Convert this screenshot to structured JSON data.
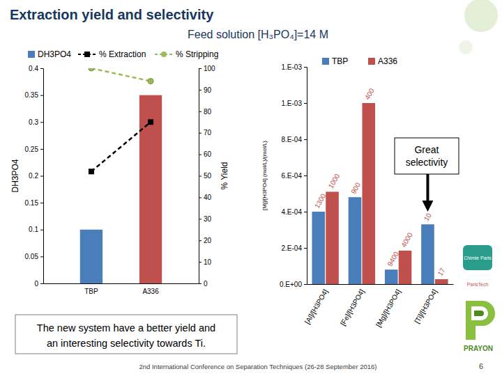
{
  "slide": {
    "title": "Extraction yield and selectivity",
    "subtitle": "Feed solution [H₃PO₄]=14 M",
    "caption": [
      "The new system have a better yield and",
      "an interesting selectivity towards Ti."
    ],
    "footer": "2nd International Conference on Separation Techniques (26-28 September 2016)",
    "page": "6",
    "logos": [
      "Chimie Paris",
      "ParisTech",
      "PRAYON"
    ]
  },
  "chart_data": [
    {
      "type": "bar",
      "categories": [
        "TBP",
        "A336"
      ],
      "y_label": "DH3PO4",
      "y2_label": "% Yield",
      "ylim": [
        0,
        0.4
      ],
      "yticks": [
        0,
        0.05,
        0.1,
        0.15,
        0.2,
        0.25,
        0.3,
        0.35,
        0.4
      ],
      "y2lim": [
        0,
        100
      ],
      "y2ticks": [
        0,
        10,
        20,
        30,
        40,
        50,
        60,
        70,
        80,
        90,
        100
      ],
      "legend": "top",
      "series": [
        {
          "name": "DH3PO4",
          "type": "bar",
          "colors": [
            "#4a7ebb",
            "#c0504d"
          ],
          "values": [
            0.1,
            0.35
          ]
        },
        {
          "name": "% Extraction",
          "type": "line",
          "axis": "y2",
          "color": "#000000",
          "marker": "square",
          "line_style": "dashed",
          "values": [
            52,
            75
          ]
        },
        {
          "name": "% Stripping",
          "type": "line",
          "axis": "y2",
          "color": "#9bbb59",
          "marker": "circle",
          "line_style": "dashed",
          "values": [
            100,
            94
          ]
        }
      ]
    },
    {
      "type": "bar",
      "categories": [
        "[Al]/[H3PO4]",
        "[Fe]/[H3PO4]",
        "[Mg]/[H3PO4]",
        "[Ti]/[H3PO4]"
      ],
      "y_label": "[Mj]/[H3PO4] (mol/L)/(mol/L)",
      "ylim": [
        0,
        0.0012
      ],
      "yticks": [
        {
          "value": 0,
          "label": "0.E+00"
        },
        {
          "value": 0.0002,
          "label": "2.E-04"
        },
        {
          "value": 0.0004,
          "label": "4.E-04"
        },
        {
          "value": 0.0006,
          "label": "6.E-04"
        },
        {
          "value": 0.0008,
          "label": "8.E-04"
        },
        {
          "value": 0.001,
          "label": "1.E-03"
        },
        {
          "value": 0.0012,
          "label": "1.E-03"
        }
      ],
      "legend": "top",
      "annotation": "Great selectivity",
      "series": [
        {
          "name": "TBP",
          "color": "#4a7ebb",
          "values": [
            0.0004,
            0.00048,
            8e-05,
            0.00033
          ],
          "factors": [
            1300,
            900,
            9400,
            10
          ]
        },
        {
          "name": "A336",
          "color": "#c0504d",
          "values": [
            0.00051,
            0.001,
            0.000185,
            2.7e-05
          ],
          "factors": [
            1000,
            400,
            4000,
            17
          ]
        }
      ]
    }
  ]
}
